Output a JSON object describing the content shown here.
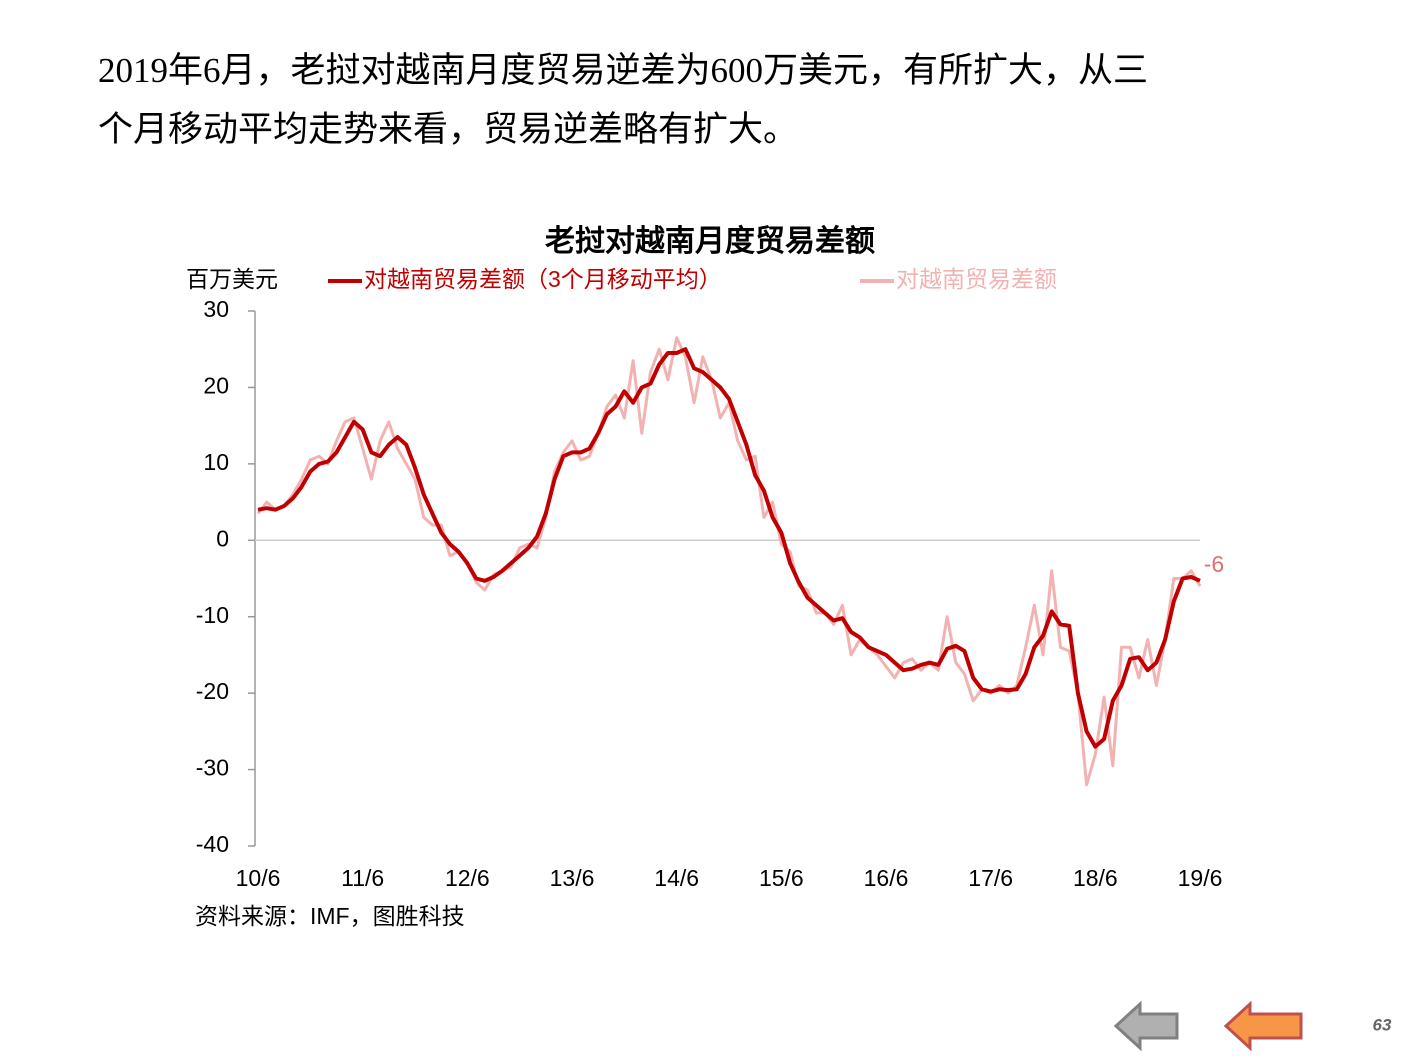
{
  "header": {
    "lines": [
      "2019年6月，老挝对越南月度贸易逆差为600万美元，有所扩大，从三",
      "个月移动平均走势来看，贸易逆差略有扩大。"
    ]
  },
  "chart_data": {
    "type": "line",
    "title": "老挝对越南月度贸易差额",
    "y_label": "百万美元",
    "categories": [
      "10/6",
      null,
      null,
      null,
      null,
      null,
      null,
      null,
      null,
      null,
      null,
      null,
      "11/6",
      null,
      null,
      null,
      null,
      null,
      null,
      null,
      null,
      null,
      null,
      null,
      "12/6",
      null,
      null,
      null,
      null,
      null,
      null,
      null,
      null,
      null,
      null,
      null,
      "13/6",
      null,
      null,
      null,
      null,
      null,
      null,
      null,
      null,
      null,
      null,
      null,
      "14/6",
      null,
      null,
      null,
      null,
      null,
      null,
      null,
      null,
      null,
      null,
      null,
      "15/6",
      null,
      null,
      null,
      null,
      null,
      null,
      null,
      null,
      null,
      null,
      null,
      "16/6",
      null,
      null,
      null,
      null,
      null,
      null,
      null,
      null,
      null,
      null,
      null,
      "17/6",
      null,
      null,
      null,
      null,
      null,
      null,
      null,
      null,
      null,
      null,
      null,
      "18/6",
      null,
      null,
      null,
      null,
      null,
      null,
      null,
      null,
      null,
      null,
      null,
      "19/6"
    ],
    "series": [
      {
        "name": "对越南贸易差额（3个月移动平均）",
        "color": "#c00000",
        "width": 4,
        "values": [
          4,
          4.2,
          4,
          4.5,
          5.5,
          7,
          9,
          10,
          10.3,
          11.5,
          13.5,
          15.5,
          14.5,
          11.5,
          11,
          12.5,
          13.5,
          12.5,
          9.5,
          6,
          3.5,
          1,
          -0.5,
          -1.5,
          -3,
          -5,
          -5.3,
          -4.8,
          -4,
          -3,
          -2,
          -1,
          0.5,
          3.5,
          8,
          11,
          11.5,
          11.5,
          12,
          14,
          16.5,
          17.5,
          19.5,
          18,
          20,
          20.5,
          23,
          24.5,
          24.5,
          25,
          22.5,
          22,
          21,
          20,
          18.5,
          15.5,
          12.5,
          8.5,
          6.5,
          3,
          1,
          -3,
          -5.5,
          -7.5,
          -8.5,
          -9.5,
          -10.5,
          -10.2,
          -12,
          -12.7,
          -14,
          -14.5,
          -15,
          -16,
          -17,
          -16.8,
          -16.3,
          -16,
          -16.3,
          -14.2,
          -13.8,
          -14.5,
          -18,
          -19.5,
          -19.8,
          -19.5,
          -19.6,
          -19.5,
          -17.5,
          -14,
          -12.5,
          -9.3,
          -11,
          -11.2,
          -20,
          -25,
          -27,
          -26,
          -21,
          -19,
          -15.5,
          -15.3,
          -17,
          -16,
          -13,
          -8,
          -5,
          -4.8,
          -5.3
        ]
      },
      {
        "name": "对越南贸易差额",
        "color": "#f2b2b2",
        "width": 3,
        "end_label": true,
        "values": [
          3.5,
          5,
          4,
          4.5,
          6,
          8,
          10.5,
          11,
          10,
          13,
          15.5,
          16,
          12,
          8,
          13,
          15.5,
          12,
          10,
          8,
          3,
          2,
          2,
          -2,
          -1.5,
          -3,
          -5.5,
          -6.5,
          -4.5,
          -4,
          -3.5,
          -1,
          -0.5,
          -1,
          3,
          9,
          11.5,
          13,
          10.5,
          11,
          14,
          17.5,
          19,
          16,
          23.5,
          14,
          22,
          25,
          21,
          26.5,
          24,
          18,
          24,
          21,
          16,
          18,
          13,
          10.5,
          11,
          3,
          5,
          -0.5,
          -1.5,
          -6,
          -6.5,
          -9.5,
          -9.5,
          -11,
          -8.5,
          -15,
          -13,
          -14,
          -15,
          -16.5,
          -18,
          -16,
          -15.5,
          -17,
          -16,
          -17,
          -10,
          -16,
          -17.5,
          -21,
          -19.5,
          -20,
          -19,
          -20,
          -19,
          -14,
          -8.5,
          -15,
          -4,
          -14,
          -14.5,
          -20,
          -32,
          -28,
          -20.5,
          -29.5,
          -14,
          -14,
          -18,
          -13,
          -19,
          -13,
          -5,
          -5,
          -4,
          -6
        ]
      }
    ],
    "ylim": [
      -40,
      30
    ],
    "yticks": [
      -40,
      -30,
      -20,
      -10,
      0,
      10,
      20,
      30
    ],
    "grid": false
  },
  "source": "资料来源：IMF，图胜科技",
  "page_number": "63"
}
